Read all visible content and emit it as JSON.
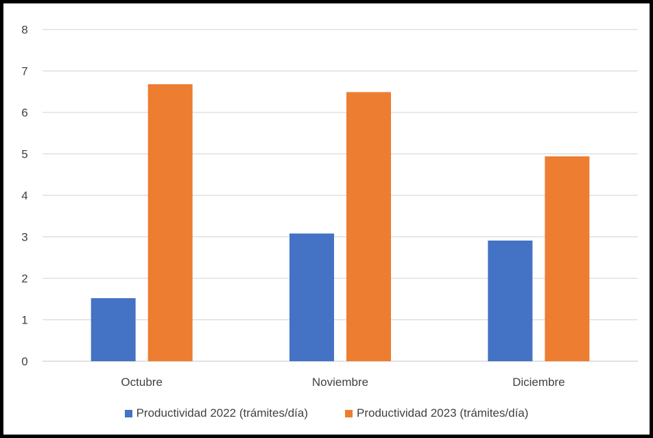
{
  "chart_data": {
    "type": "bar",
    "categories": [
      "Octubre",
      "Noviembre",
      "Diciembre"
    ],
    "series": [
      {
        "name": "Productividad 2022 (trámites/día)",
        "values": [
          1.52,
          3.08,
          2.91
        ],
        "color": "#4472C4"
      },
      {
        "name": "Productividad 2023 (trámites/día)",
        "values": [
          6.68,
          6.49,
          4.94
        ],
        "color": "#ED7D31"
      }
    ],
    "title": "",
    "xlabel": "",
    "ylabel": "",
    "ylim": [
      0,
      8
    ],
    "yticks": [
      "0",
      "1",
      "2",
      "3",
      "4",
      "5",
      "6",
      "7",
      "8"
    ],
    "grid": true,
    "legend_position": "bottom"
  }
}
